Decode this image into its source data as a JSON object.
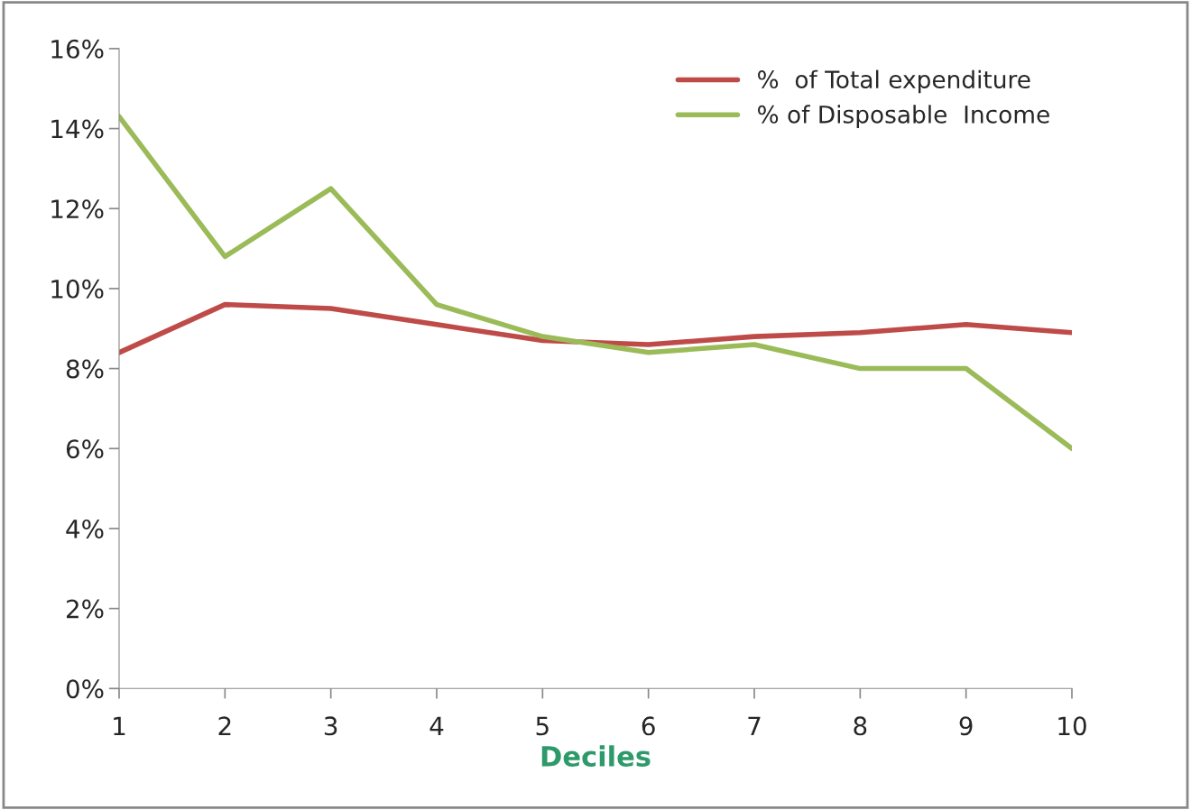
{
  "chart_data": {
    "type": "line",
    "xlabel": "Deciles",
    "x": [
      1,
      2,
      3,
      4,
      5,
      6,
      7,
      8,
      9,
      10
    ],
    "series": [
      {
        "name": "%  of Total expenditure",
        "color": "#be4b48",
        "values": [
          8.4,
          9.6,
          9.5,
          9.1,
          8.7,
          8.6,
          8.8,
          8.9,
          9.1,
          8.9
        ]
      },
      {
        "name": "% of Disposable  Income",
        "color": "#9bbb59",
        "values": [
          14.3,
          10.8,
          12.5,
          9.6,
          8.8,
          8.4,
          8.6,
          8.0,
          8.0,
          6.0
        ]
      }
    ],
    "xlim": [
      1,
      10
    ],
    "xticks": [
      1,
      2,
      3,
      4,
      5,
      6,
      7,
      8,
      9,
      10
    ],
    "ylim": [
      0,
      16
    ],
    "yticks": [
      {
        "value": 0,
        "label": "0%"
      },
      {
        "value": 2,
        "label": "2%"
      },
      {
        "value": 4,
        "label": "4%"
      },
      {
        "value": 6,
        "label": "6%"
      },
      {
        "value": 8,
        "label": "8%"
      },
      {
        "value": 10,
        "label": "10%"
      },
      {
        "value": 12,
        "label": "12%"
      },
      {
        "value": 14,
        "label": "14%"
      },
      {
        "value": 16,
        "label": "16%"
      }
    ],
    "grid": false,
    "legend": "top right",
    "marker": "none",
    "line_style": "solid"
  }
}
